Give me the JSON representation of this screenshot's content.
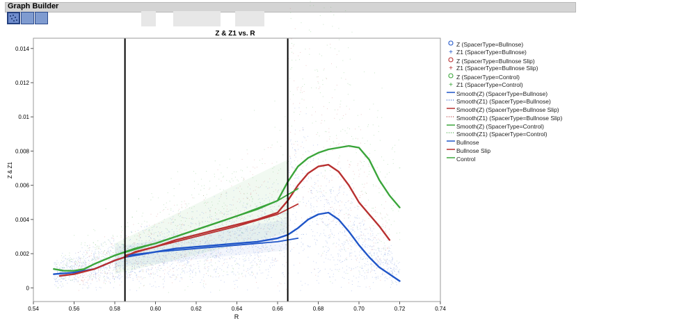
{
  "window": {
    "title": "Graph Builder"
  },
  "toolbar": {
    "buttons": [
      {
        "name": "points-button"
      },
      {
        "name": "blank-button"
      },
      {
        "name": "blank-button-2"
      }
    ]
  },
  "colors": {
    "bullnose": "#1f55c8",
    "bullnose_slip": "#b83030",
    "control": "#3aa53a",
    "cursor": "#000000"
  },
  "chart_data": {
    "type": "scatter",
    "title": "Z & Z1 vs. R",
    "xlabel": "R",
    "ylabel": "Z & Z1",
    "xlim": [
      0.54,
      0.74
    ],
    "ylim": [
      -0.0008,
      0.0146
    ],
    "x_ticks": [
      "0.54",
      "0.56",
      "0.58",
      "0.60",
      "0.62",
      "0.64",
      "0.66",
      "0.68",
      "0.70",
      "0.72",
      "0.74"
    ],
    "y_ticks": [
      "0",
      "0.002",
      "0.004",
      "0.006",
      "0.008",
      "0.01",
      "0.012",
      "0.014"
    ],
    "reference_lines_x": [
      0.585,
      0.665
    ],
    "grid": false,
    "legend_position": "right",
    "smooth_series": [
      {
        "name": "Bullnose",
        "color": "#1f55c8",
        "x": [
          0.55,
          0.56,
          0.57,
          0.58,
          0.585,
          0.59,
          0.6,
          0.61,
          0.62,
          0.63,
          0.64,
          0.65,
          0.66,
          0.665,
          0.67,
          0.675,
          0.68,
          0.685,
          0.69,
          0.695,
          0.7,
          0.705,
          0.71,
          0.72
        ],
        "y": [
          0.0008,
          0.0009,
          0.0011,
          0.0016,
          0.0018,
          0.0019,
          0.0021,
          0.0023,
          0.0024,
          0.0025,
          0.0026,
          0.0027,
          0.0029,
          0.0031,
          0.0035,
          0.004,
          0.0043,
          0.0044,
          0.004,
          0.0033,
          0.0025,
          0.0018,
          0.0012,
          0.0004
        ]
      },
      {
        "name": "Bullnose Slip",
        "color": "#b83030",
        "x": [
          0.553,
          0.56,
          0.57,
          0.58,
          0.585,
          0.59,
          0.6,
          0.61,
          0.62,
          0.63,
          0.64,
          0.65,
          0.66,
          0.665,
          0.67,
          0.675,
          0.68,
          0.685,
          0.69,
          0.695,
          0.7,
          0.705,
          0.71,
          0.715
        ],
        "y": [
          0.0007,
          0.0008,
          0.0011,
          0.0016,
          0.0018,
          0.0021,
          0.0024,
          0.0028,
          0.0031,
          0.0034,
          0.0037,
          0.004,
          0.0044,
          0.0051,
          0.006,
          0.0067,
          0.0071,
          0.0072,
          0.0068,
          0.006,
          0.005,
          0.0043,
          0.0036,
          0.0028
        ]
      },
      {
        "name": "Control",
        "color": "#3aa53a",
        "x": [
          0.55,
          0.555,
          0.56,
          0.565,
          0.57,
          0.58,
          0.585,
          0.59,
          0.6,
          0.61,
          0.62,
          0.63,
          0.64,
          0.65,
          0.66,
          0.665,
          0.67,
          0.675,
          0.68,
          0.685,
          0.69,
          0.695,
          0.7,
          0.705,
          0.71,
          0.715,
          0.72
        ],
        "y": [
          0.0011,
          0.001,
          0.001,
          0.0011,
          0.0014,
          0.0019,
          0.0021,
          0.0023,
          0.0026,
          0.003,
          0.0034,
          0.0038,
          0.0042,
          0.0046,
          0.0051,
          0.0062,
          0.0071,
          0.0076,
          0.0079,
          0.0081,
          0.0082,
          0.0083,
          0.0082,
          0.0075,
          0.0063,
          0.0054,
          0.0047
        ]
      },
      {
        "name": "Smooth(Z1) Bullnose",
        "color": "#1f55c8",
        "x": [
          0.585,
          0.6,
          0.62,
          0.64,
          0.66,
          0.67
        ],
        "y": [
          0.0019,
          0.0021,
          0.0023,
          0.0025,
          0.0027,
          0.0029
        ]
      },
      {
        "name": "Smooth(Z1) Bullnose Slip",
        "color": "#b83030",
        "x": [
          0.585,
          0.6,
          0.62,
          0.64,
          0.66,
          0.67
        ],
        "y": [
          0.0019,
          0.0024,
          0.003,
          0.0036,
          0.0043,
          0.0049
        ]
      },
      {
        "name": "Smooth(Z1) Control",
        "color": "#3aa53a",
        "x": [
          0.58,
          0.6,
          0.62,
          0.64,
          0.66,
          0.67
        ],
        "y": [
          0.0019,
          0.0026,
          0.0034,
          0.0042,
          0.0051,
          0.0058
        ]
      }
    ],
    "legend": [
      {
        "label": "Z (SpacerType=Bullnose)",
        "symbol": "circle",
        "color": "#1f55c8"
      },
      {
        "label": "Z1 (SpacerType=Bullnose)",
        "symbol": "plus",
        "color": "#1f55c8"
      },
      {
        "label": "Z (SpacerType=Bullnose Slip)",
        "symbol": "circle",
        "color": "#b83030"
      },
      {
        "label": "Z1 (SpacerType=Bullnose Slip)",
        "symbol": "plus",
        "color": "#b83030"
      },
      {
        "label": "Z (SpacerType=Control)",
        "symbol": "circle",
        "color": "#3aa53a"
      },
      {
        "label": "Z1 (SpacerType=Control)",
        "symbol": "plus",
        "color": "#3aa53a"
      },
      {
        "label": "Smooth(Z) (SpacerType=Bullnose)",
        "symbol": "line",
        "color": "#1f55c8"
      },
      {
        "label": "Smooth(Z1) (SpacerType=Bullnose)",
        "symbol": "dots",
        "color": "#1f55c8"
      },
      {
        "label": "Smooth(Z) (SpacerType=Bullnose Slip)",
        "symbol": "line",
        "color": "#b83030"
      },
      {
        "label": "Smooth(Z1) (SpacerType=Bullnose Slip)",
        "symbol": "dots",
        "color": "#b83030"
      },
      {
        "label": "Smooth(Z) (SpacerType=Control)",
        "symbol": "line",
        "color": "#3aa53a"
      },
      {
        "label": "Smooth(Z1) (SpacerType=Control)",
        "symbol": "dots",
        "color": "#3aa53a"
      },
      {
        "label": "Bullnose",
        "symbol": "line",
        "color": "#1f55c8"
      },
      {
        "label": "Bullnose Slip",
        "symbol": "line",
        "color": "#b83030"
      },
      {
        "label": "Control",
        "symbol": "line",
        "color": "#3aa53a"
      }
    ]
  }
}
